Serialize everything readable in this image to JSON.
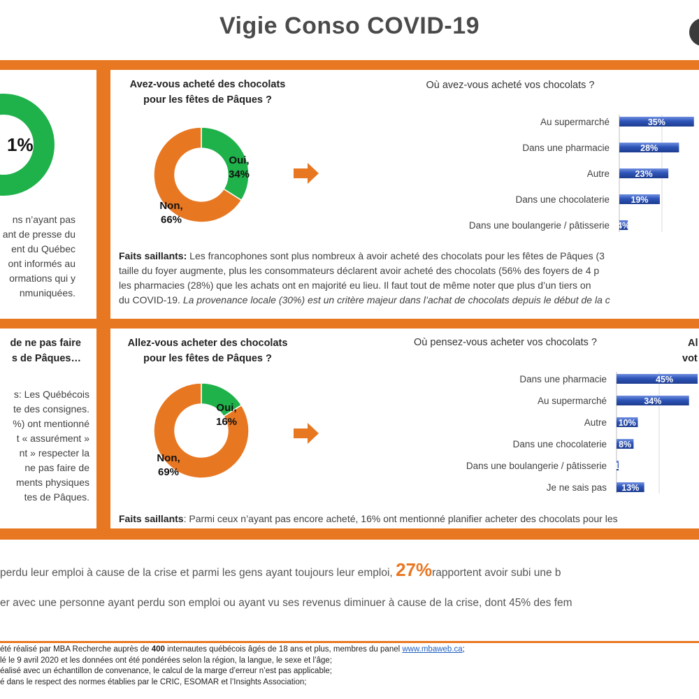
{
  "header": {
    "title": "Vigie Conso COVID-19"
  },
  "left_panel_1": {
    "donut_label": "1%",
    "text_lines": [
      "ns n’ayant pas",
      "ant de presse du",
      "ent du Québec",
      "ont informés au",
      "ormations qui y",
      "nmuniquées."
    ]
  },
  "panel_top": {
    "question": "Avez-vous acheté des chocolats pour les fêtes de Pâques ?",
    "question_lines": [
      "Avez-vous acheté des chocolats",
      "pour les fêtes de Pâques ?"
    ],
    "donut": {
      "yes_label": "Oui,",
      "yes_value": "34%",
      "yes_pct": 34,
      "no_label": "Non,",
      "no_value": "66%",
      "no_pct": 66
    },
    "faits_label": "Faits saillants:",
    "faits_lines": [
      " Les francophones sont plus nombreux à avoir acheté des chocolats pour les fêtes de Pâques (3",
      "taille du foyer augmente, plus les consommateurs déclarent avoir acheté des chocolats (56% des foyers de 4 p",
      "les pharmacies (28%) que les achats ont en majorité eu lieu. Il faut tout de même noter que plus d’un tiers on",
      "du COVID-19. "
    ],
    "faits_italic": "La provenance locale (30%) est un critère majeur dans l’achat de chocolats depuis le début de la c"
  },
  "panel_bottom": {
    "question_lines": [
      "Allez-vous acheter des chocolats",
      "pour les fêtes de Pâques ?"
    ],
    "donut": {
      "yes_label": "Oui,",
      "yes_value": "16%",
      "yes_pct": 16,
      "no_label": "Non,",
      "no_value": "69%",
      "no_pct": 69
    },
    "faits_label": "Faits saillants",
    "faits_text": ": Parmi ceux n’ayant pas encore acheté, 16% ont mentionné planifier acheter des chocolats pour les",
    "right_cut": [
      "Al",
      "vot"
    ]
  },
  "left_panel_2": {
    "title_lines": [
      "de ne pas faire",
      "s de Pâques…"
    ],
    "text_lines": [
      "s: Les Québécois",
      "te des consignes.",
      "%) ont mentionné",
      "t « assurément »",
      "nt » respecter la",
      "ne pas faire de",
      "ments physiques",
      "tes de Pâques."
    ]
  },
  "chart_data": [
    {
      "type": "bar",
      "title": "Où avez-vous acheté vos chocolats ?",
      "categories": [
        "Au supermarché",
        "Dans une pharmacie",
        "Autre",
        "Dans une chocolaterie",
        "Dans une boulangerie / pâtisserie"
      ],
      "values": [
        35,
        28,
        23,
        19,
        4
      ],
      "labels": [
        "35%",
        "28%",
        "23%",
        "19%",
        "4%"
      ],
      "orientation": "horizontal",
      "grid": true
    },
    {
      "type": "bar",
      "title": "Où pensez-vous acheter vos chocolats ?",
      "categories": [
        "Dans une pharmacie",
        "Au supermarché",
        "Autre",
        "Dans une chocolaterie",
        "Dans une boulangerie / pâtisserie",
        "Je ne sais pas"
      ],
      "values": [
        45,
        34,
        10,
        8,
        1,
        13
      ],
      "labels": [
        "45%",
        "34%",
        "10%",
        "8%",
        "1%",
        "13%"
      ],
      "orientation": "horizontal",
      "grid": true
    }
  ],
  "stats": {
    "line1_before": "perdu leur emploi à cause de la crise et parmi les gens ayant toujours leur emploi,",
    "line1_big": "27%",
    "line1_after": "rapportent avoir subi une b",
    "line2": "er avec une personne ayant perdu son emploi ou ayant vu ses revenus diminuer à cause de la crise, dont 45% des fem"
  },
  "notes": {
    "line1_a": "été réalisé par MBA Recherche auprès de ",
    "line1_bold": "400",
    "line1_b": " internautes québécois âgés de 18 ans et plus, membres du panel ",
    "line1_link": "www.mbaweb.ca",
    "line1_c": ";",
    "line2": "lé le 9 avril 2020 et les données ont été pondérées selon la région, la langue, le sexe et l’âge;",
    "line3": "éalisé avec un échantillon de convenance, le calcul de la marge d’erreur n’est pas applicable;",
    "line4": "é dans le respect des normes établies par le CRIC, ESOMAR et l’Insights Association;"
  },
  "colors": {
    "orange": "#e87722",
    "green": "#1fb14a",
    "bar_blue": "#2e55b8"
  }
}
